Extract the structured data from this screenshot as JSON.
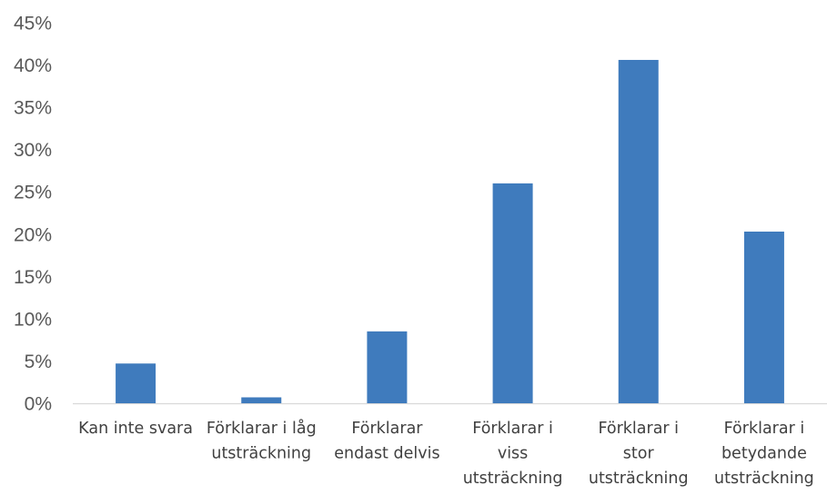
{
  "chart_data": {
    "type": "bar",
    "title": "",
    "xlabel": "",
    "ylabel": "",
    "categories": [
      [
        "Kan inte svara"
      ],
      [
        "Förklarar i låg",
        "utsträckning"
      ],
      [
        "Förklarar",
        "endast delvis"
      ],
      [
        "Förklarar i",
        "viss",
        "utsträckning"
      ],
      [
        "Förklarar i",
        "stor",
        "utsträckning"
      ],
      [
        "Förklarar i",
        "betydande",
        "utsträckning"
      ]
    ],
    "values": [
      4.7,
      0.7,
      8.5,
      26.0,
      40.6,
      20.3
    ],
    "ylim": [
      0,
      45
    ],
    "yticks": [
      "0%",
      "5%",
      "10%",
      "15%",
      "20%",
      "25%",
      "30%",
      "35%",
      "40%",
      "45%"
    ],
    "grid": false,
    "legend": "none",
    "bar_color": "#3f7bbd",
    "axis_line_color": "#d9d9d9",
    "tick_label_color": "#595959",
    "category_label_color": "#404040"
  }
}
